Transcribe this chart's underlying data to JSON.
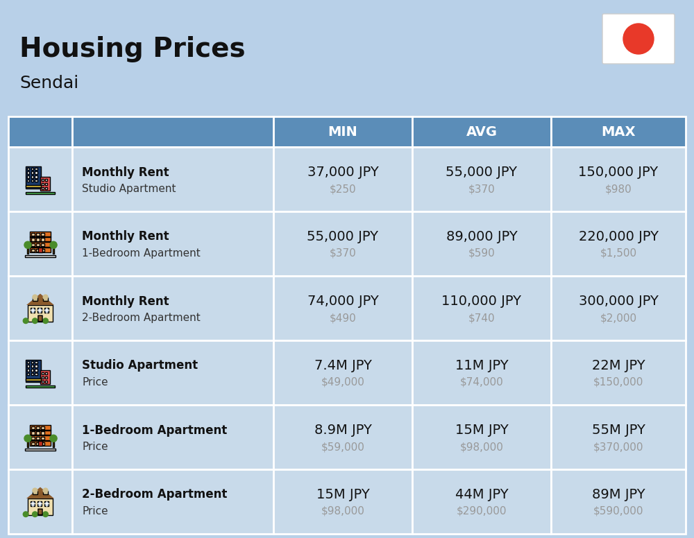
{
  "title": "Housing Prices",
  "subtitle": "Sendai",
  "bg_color": "#b8d0e8",
  "header_bg_color": "#5b8db8",
  "header_text_color": "#ffffff",
  "row_bg_color": "#c8daea",
  "col_headers": [
    "MIN",
    "AVG",
    "MAX"
  ],
  "rows": [
    {
      "icon_type": "city_blue",
      "label_bold": "Monthly Rent",
      "label_normal": "Studio Apartment",
      "min_jpy": "37,000 JPY",
      "min_usd": "$250",
      "avg_jpy": "55,000 JPY",
      "avg_usd": "$370",
      "max_jpy": "150,000 JPY",
      "max_usd": "$980"
    },
    {
      "icon_type": "apt_orange",
      "label_bold": "Monthly Rent",
      "label_normal": "1-Bedroom Apartment",
      "min_jpy": "55,000 JPY",
      "min_usd": "$370",
      "avg_jpy": "89,000 JPY",
      "avg_usd": "$590",
      "max_jpy": "220,000 JPY",
      "max_usd": "$1,500"
    },
    {
      "icon_type": "house_tan",
      "label_bold": "Monthly Rent",
      "label_normal": "2-Bedroom Apartment",
      "min_jpy": "74,000 JPY",
      "min_usd": "$490",
      "avg_jpy": "110,000 JPY",
      "avg_usd": "$740",
      "max_jpy": "300,000 JPY",
      "max_usd": "$2,000"
    },
    {
      "icon_type": "city_blue",
      "label_bold": "Studio Apartment",
      "label_normal": "Price",
      "min_jpy": "7.4M JPY",
      "min_usd": "$49,000",
      "avg_jpy": "11M JPY",
      "avg_usd": "$74,000",
      "max_jpy": "22M JPY",
      "max_usd": "$150,000"
    },
    {
      "icon_type": "apt_orange",
      "label_bold": "1-Bedroom Apartment",
      "label_normal": "Price",
      "min_jpy": "8.9M JPY",
      "min_usd": "$59,000",
      "avg_jpy": "15M JPY",
      "avg_usd": "$98,000",
      "max_jpy": "55M JPY",
      "max_usd": "$370,000"
    },
    {
      "icon_type": "house_tan",
      "label_bold": "2-Bedroom Apartment",
      "label_normal": "Price",
      "min_jpy": "15M JPY",
      "min_usd": "$98,000",
      "avg_jpy": "44M JPY",
      "avg_usd": "$290,000",
      "max_jpy": "89M JPY",
      "max_usd": "$590,000"
    }
  ]
}
